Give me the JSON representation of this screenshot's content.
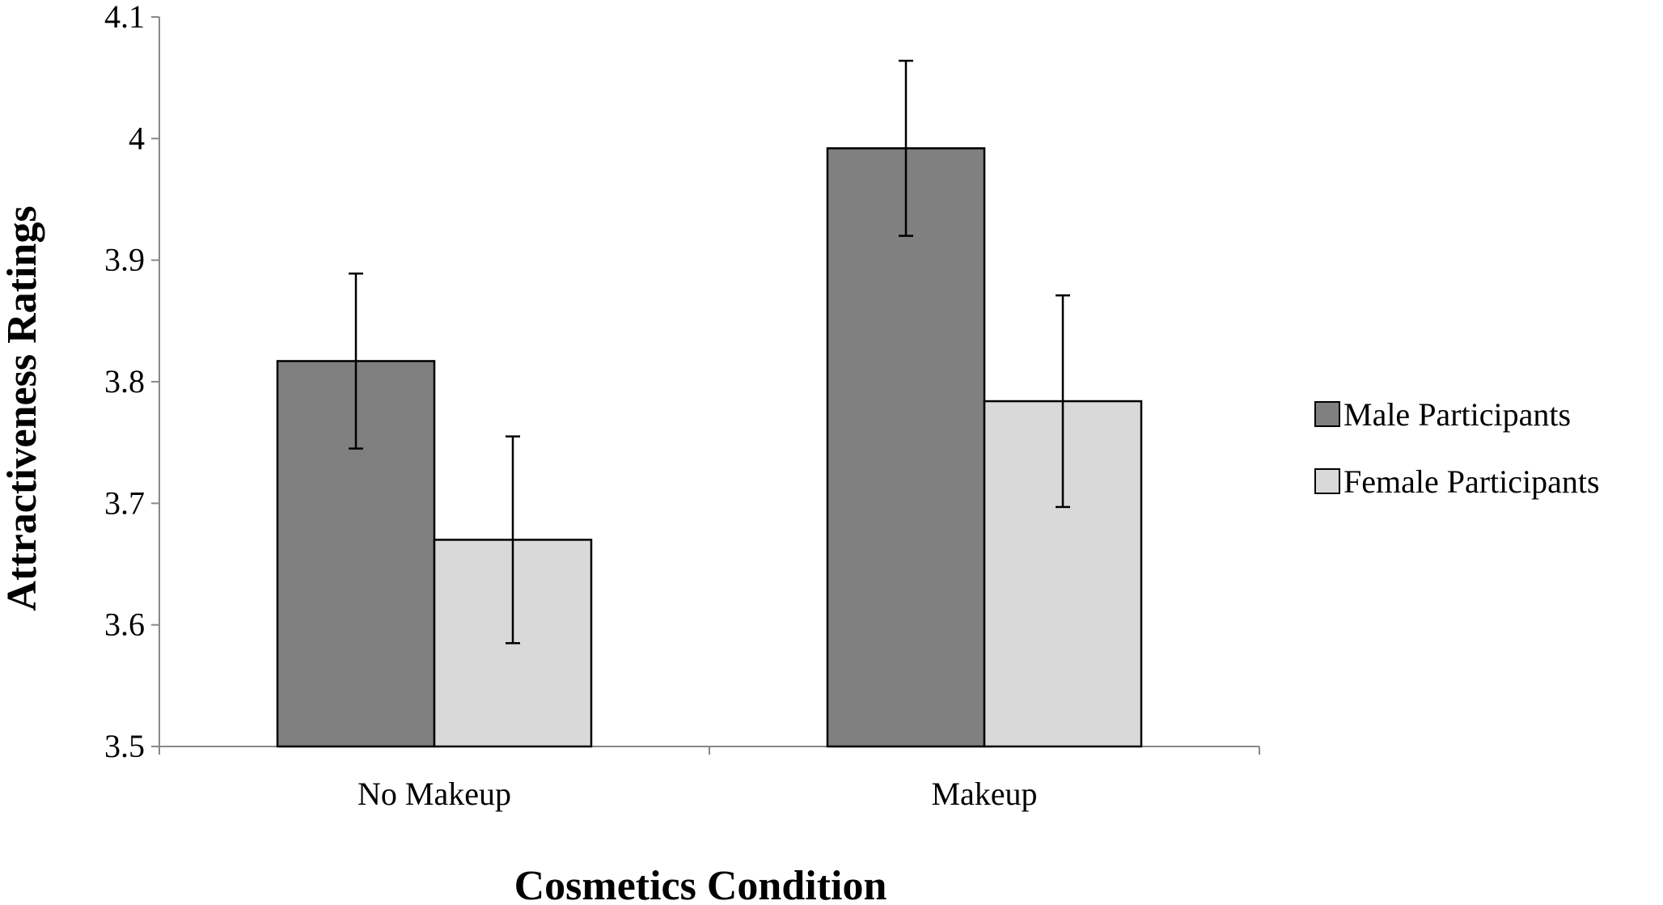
{
  "chart_data": {
    "type": "bar",
    "title": "",
    "xlabel": "Cosmetics Condition",
    "ylabel": "Attractiveness Ratings",
    "ylim": [
      3.5,
      4.1
    ],
    "yticks": [
      "3.5",
      "3.6",
      "3.7",
      "3.8",
      "3.9",
      "4",
      "4.1"
    ],
    "categories": [
      "No Makeup",
      "Makeup"
    ],
    "series": [
      {
        "name": "Male Participants",
        "color": "#808080",
        "values": [
          3.817,
          3.992
        ],
        "errors": [
          0.072,
          0.072
        ]
      },
      {
        "name": "Female Participants",
        "color": "#d9d9d9",
        "values": [
          3.67,
          3.784
        ],
        "errors": [
          0.085,
          0.087
        ]
      }
    ],
    "legend_position": "right",
    "grid": false
  }
}
